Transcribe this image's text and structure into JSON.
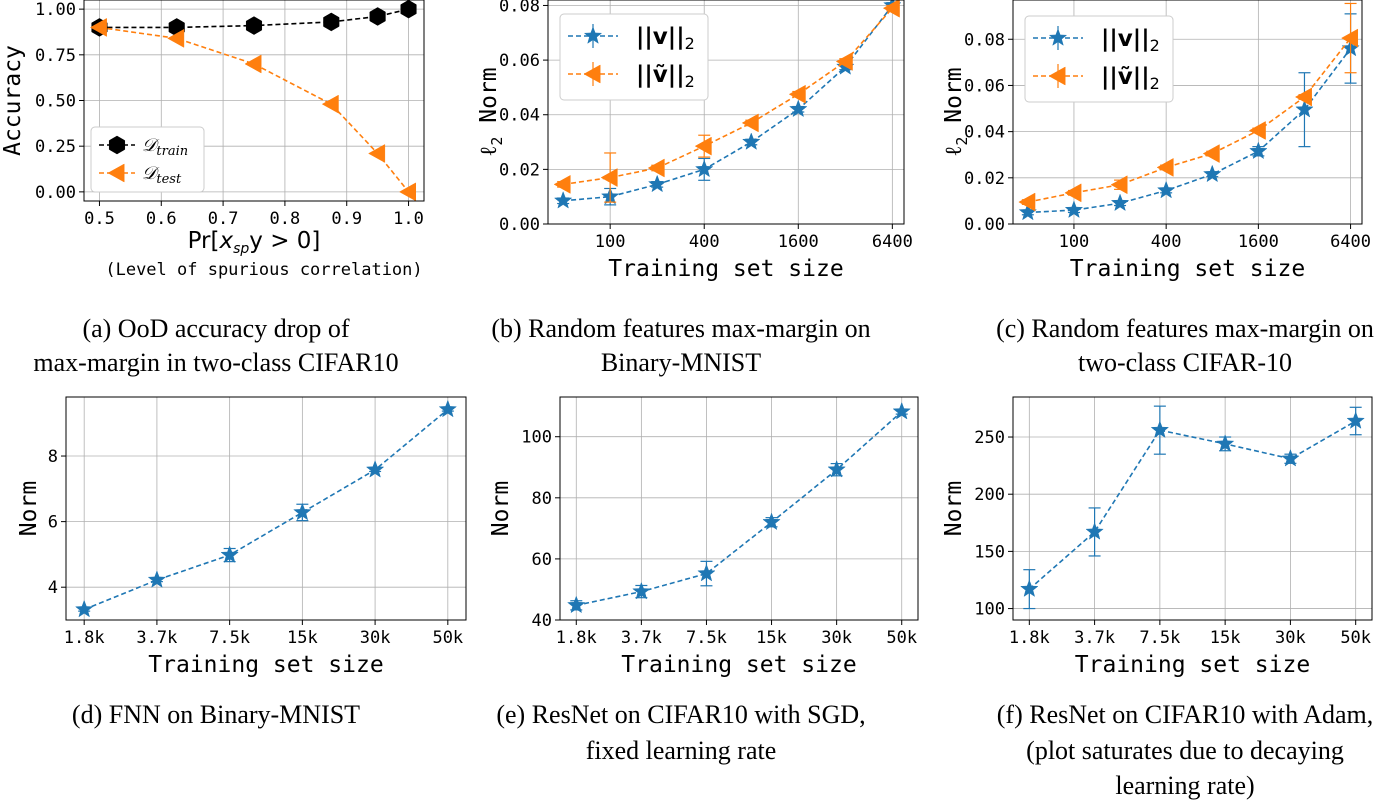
{
  "chart_data": [
    {
      "id": "a",
      "type": "line",
      "title": "",
      "xlabel": "Pr[x_sp y > 0]",
      "xlabel_parts": [
        "Pr[",
        "x",
        "sp",
        "y > 0]"
      ],
      "xlabel2": "(Level of spurious correlation)",
      "ylabel": "Accuracy",
      "xlim": [
        0.475,
        1.025
      ],
      "ylim": [
        -0.05,
        1.05
      ],
      "x_ticks": [
        0.5,
        0.6,
        0.7,
        0.8,
        0.9,
        1.0
      ],
      "x_tick_labels": [
        "0.5",
        "0.6",
        "0.7",
        "0.8",
        "0.9",
        "1.0"
      ],
      "y_ticks": [
        0,
        0.25,
        0.5,
        0.75,
        1.0
      ],
      "y_tick_labels": [
        "0.00",
        "0.25",
        "0.50",
        "0.75",
        "1.00"
      ],
      "legend_position": "lower-left",
      "series": [
        {
          "name": "D_train",
          "legend_math": "𝒟",
          "legend_sub": "train",
          "color": "#000000",
          "marker": "hexagon",
          "x": [
            0.5,
            0.625,
            0.75,
            0.875,
            0.95,
            1.0
          ],
          "values": [
            0.9,
            0.9,
            0.91,
            0.93,
            0.96,
            1.0
          ]
        },
        {
          "name": "D_test",
          "legend_math": "𝒟",
          "legend_sub": "test",
          "color": "#ff7f0e",
          "marker": "triangle-left",
          "x": [
            0.5,
            0.625,
            0.75,
            0.875,
            0.95,
            1.0
          ],
          "values": [
            0.9,
            0.84,
            0.7,
            0.48,
            0.21,
            0.0
          ]
        }
      ],
      "caption": [
        "(a) OoD accuracy drop of",
        "max-margin in two-class CIFAR10"
      ]
    },
    {
      "id": "b",
      "type": "line",
      "xlabel": "Training set size",
      "ylabel": "ℓ2 Norm",
      "xscale": "log2",
      "xlim": [
        40,
        7600
      ],
      "ylim": [
        0.0,
        0.082
      ],
      "x_ticks": [
        100,
        400,
        1600,
        6400
      ],
      "x_tick_labels": [
        "100",
        "400",
        "1600",
        "6400"
      ],
      "y_ticks": [
        0.0,
        0.02,
        0.04,
        0.06,
        0.08
      ],
      "y_tick_labels": [
        "0.00",
        "0.02",
        "0.04",
        "0.06",
        "0.08"
      ],
      "legend_position": "upper-left",
      "series": [
        {
          "name": "||v||2",
          "legend_label": "||v||",
          "legend_sub": "2",
          "color": "#1f77b4",
          "marker": "star",
          "x": [
            50,
            100,
            200,
            400,
            800,
            1600,
            3200,
            6400
          ],
          "values": [
            0.0085,
            0.01,
            0.0145,
            0.02,
            0.03,
            0.042,
            0.0575,
            0.08
          ],
          "errors": [
            0.001,
            0.003,
            0.001,
            0.004,
            0.001,
            0.001,
            0.001,
            0.001
          ]
        },
        {
          "name": "||ṽ||2",
          "legend_label": "||ṽ||",
          "legend_sub": "2",
          "color": "#ff7f0e",
          "marker": "triangle-left",
          "x": [
            50,
            100,
            200,
            400,
            800,
            1600,
            3200,
            6400
          ],
          "values": [
            0.0145,
            0.017,
            0.0205,
            0.0285,
            0.037,
            0.0475,
            0.0595,
            0.079
          ],
          "errors": [
            0.001,
            0.009,
            0.001,
            0.004,
            0.001,
            0.001,
            0.001,
            0.001
          ]
        }
      ],
      "caption": [
        "(b) Random features max-margin on",
        "Binary-MNIST"
      ]
    },
    {
      "id": "c",
      "type": "line",
      "xlabel": "Training set size",
      "ylabel": "ℓ2 Norm",
      "xscale": "log2",
      "xlim": [
        40,
        7600
      ],
      "ylim": [
        0.0,
        0.097
      ],
      "x_ticks": [
        100,
        400,
        1600,
        6400
      ],
      "x_tick_labels": [
        "100",
        "400",
        "1600",
        "6400"
      ],
      "y_ticks": [
        0.0,
        0.02,
        0.04,
        0.06,
        0.08
      ],
      "y_tick_labels": [
        "0.00",
        "0.02",
        "0.04",
        "0.06",
        "0.08"
      ],
      "legend_position": "upper-left",
      "series": [
        {
          "name": "||v||2",
          "legend_label": "||v||",
          "legend_sub": "2",
          "color": "#1f77b4",
          "marker": "star",
          "x": [
            50,
            100,
            200,
            400,
            800,
            1600,
            3200,
            6400
          ],
          "values": [
            0.005,
            0.006,
            0.009,
            0.0145,
            0.0215,
            0.0315,
            0.0495,
            0.076
          ],
          "errors": [
            0.001,
            0.001,
            0.001,
            0.001,
            0.001,
            0.002,
            0.016,
            0.015
          ]
        },
        {
          "name": "||ṽ||2",
          "legend_label": "||ṽ||",
          "legend_sub": "2",
          "color": "#ff7f0e",
          "marker": "triangle-left",
          "x": [
            50,
            100,
            200,
            400,
            800,
            1600,
            3200,
            6400
          ],
          "values": [
            0.0095,
            0.0135,
            0.017,
            0.0245,
            0.0305,
            0.0405,
            0.055,
            0.0805
          ],
          "errors": [
            0.001,
            0.001,
            0.002,
            0.001,
            0.001,
            0.001,
            0.001,
            0.015
          ]
        }
      ],
      "caption": [
        "(c) Random features max-margin on",
        "two-class CIFAR-10"
      ]
    },
    {
      "id": "d",
      "type": "line",
      "xlabel": "Training set size",
      "ylabel": "Norm",
      "xlim": [
        -0.25,
        5.25
      ],
      "ylim": [
        3.0,
        9.8
      ],
      "x_ticks": [
        0,
        1,
        2,
        3,
        4,
        5
      ],
      "x_tick_labels": [
        "1.8k",
        "3.7k",
        "7.5k",
        "15k",
        "30k",
        "50k"
      ],
      "y_ticks": [
        4,
        6,
        8
      ],
      "y_tick_labels": [
        "4",
        "6",
        "8"
      ],
      "series": [
        {
          "name": "FNN",
          "color": "#1f77b4",
          "marker": "star",
          "x": [
            0,
            1,
            2,
            3,
            4,
            5
          ],
          "values": [
            3.32,
            4.22,
            4.98,
            6.28,
            7.58,
            9.42
          ],
          "errors": [
            0.05,
            0.05,
            0.2,
            0.25,
            0.05,
            0.05
          ]
        }
      ],
      "caption": [
        "(d) FNN on Binary-MNIST"
      ]
    },
    {
      "id": "e",
      "type": "line",
      "xlabel": "Training set size",
      "ylabel": "Norm",
      "xlim": [
        -0.25,
        5.25
      ],
      "ylim": [
        40,
        113
      ],
      "x_ticks": [
        0,
        1,
        2,
        3,
        4,
        5
      ],
      "x_tick_labels": [
        "1.8k",
        "3.7k",
        "7.5k",
        "15k",
        "30k",
        "50k"
      ],
      "y_ticks": [
        40,
        60,
        80,
        100
      ],
      "y_tick_labels": [
        "40",
        "60",
        "80",
        "100"
      ],
      "series": [
        {
          "name": "ResNet SGD",
          "color": "#1f77b4",
          "marker": "star",
          "x": [
            0,
            1,
            2,
            3,
            4,
            5
          ],
          "values": [
            44.8,
            49.3,
            55.2,
            72.0,
            89.2,
            108.2
          ],
          "errors": [
            1.5,
            2.0,
            4.0,
            1.5,
            2.0,
            0.8
          ]
        }
      ],
      "caption": [
        "(e) ResNet on CIFAR10 with SGD,",
        "fixed learning rate"
      ]
    },
    {
      "id": "f",
      "type": "line",
      "xlabel": "Training set size",
      "ylabel": "Norm",
      "xlim": [
        -0.25,
        5.25
      ],
      "ylim": [
        90,
        285
      ],
      "x_ticks": [
        0,
        1,
        2,
        3,
        4,
        5
      ],
      "x_tick_labels": [
        "1.8k",
        "3.7k",
        "7.5k",
        "15k",
        "30k",
        "50k"
      ],
      "y_ticks": [
        100,
        150,
        200,
        250
      ],
      "y_tick_labels": [
        "100",
        "150",
        "200",
        "250"
      ],
      "series": [
        {
          "name": "ResNet Adam",
          "color": "#1f77b4",
          "marker": "star",
          "x": [
            0,
            1,
            2,
            3,
            4,
            5
          ],
          "values": [
            117,
            167,
            256,
            244,
            231,
            264
          ],
          "errors": [
            17,
            21,
            21,
            6,
            4,
            12
          ]
        }
      ],
      "caption": [
        "(f) ResNet on CIFAR10 with Adam,",
        "(plot saturates due to decaying",
        "learning rate)"
      ]
    }
  ]
}
